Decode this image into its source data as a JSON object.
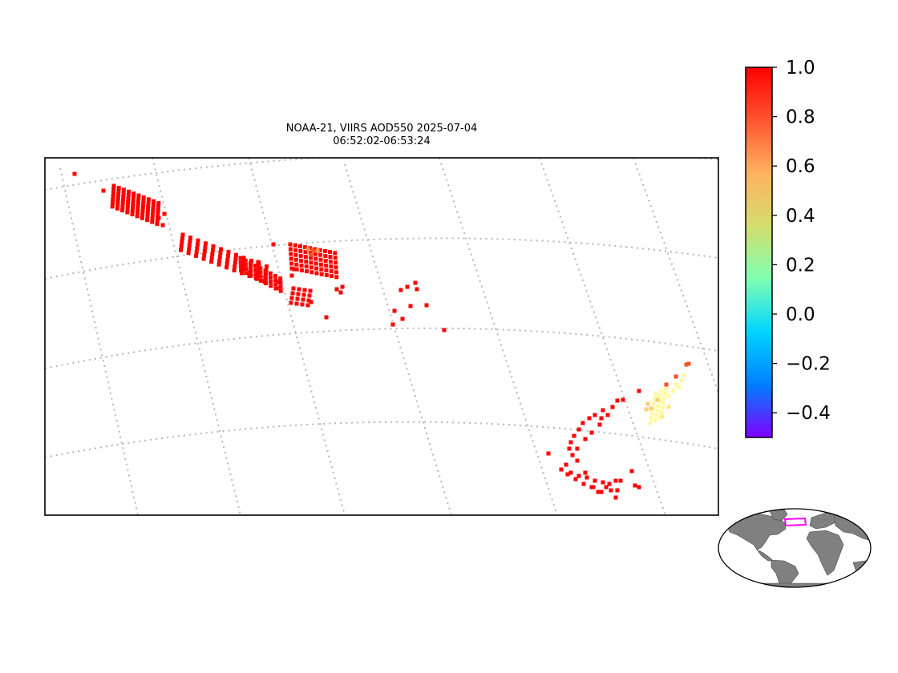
{
  "title": {
    "line1": "NOAA-21, VIIRS AOD550 2025-07-04",
    "line2": "06:52:02-06:53:24"
  },
  "colorbar": {
    "ticks": [
      "1.0",
      "0.8",
      "0.6",
      "0.4",
      "0.2",
      "0.0",
      "−0.2",
      "−0.4"
    ],
    "range": [
      -0.5,
      1.0
    ],
    "colormap": "rainbow",
    "colors": [
      "#7f00ff",
      "#007fff",
      "#00d5ff",
      "#7fffb2",
      "#d4dd6d",
      "#ffb25f",
      "#ff5530",
      "#ff0000"
    ]
  },
  "map": {
    "gridlines": "dotted lat/lon graticule",
    "frame_color": "#000000",
    "grid_color": "#b0b0b0"
  },
  "inset": {
    "land_color": "#808080",
    "ocean_color": "#ffffff",
    "region_box_color": "#ff00ff"
  },
  "aod_samples": [
    1.0,
    0.85,
    0.7,
    0.55,
    0.45,
    0.35
  ]
}
